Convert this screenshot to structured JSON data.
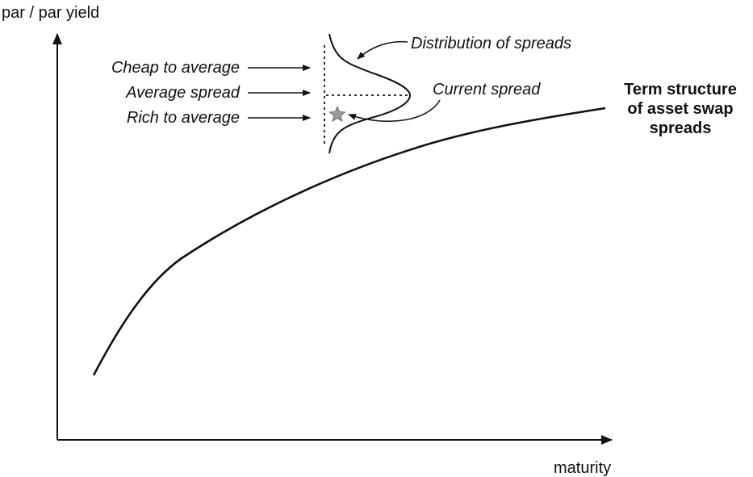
{
  "axes": {
    "y_label": "par / par yield",
    "x_label": "maturity"
  },
  "annotations": {
    "cheap": "Cheap to average",
    "average": "Average spread",
    "rich": "Rich to average",
    "distribution": "Distribution of spreads",
    "current": "Current spread"
  },
  "curve_label": {
    "line1": "Term structure",
    "line2": "of asset swap",
    "line3": "spreads"
  },
  "colors": {
    "ink": "#111111",
    "star_fill": "#9a9a9a"
  }
}
